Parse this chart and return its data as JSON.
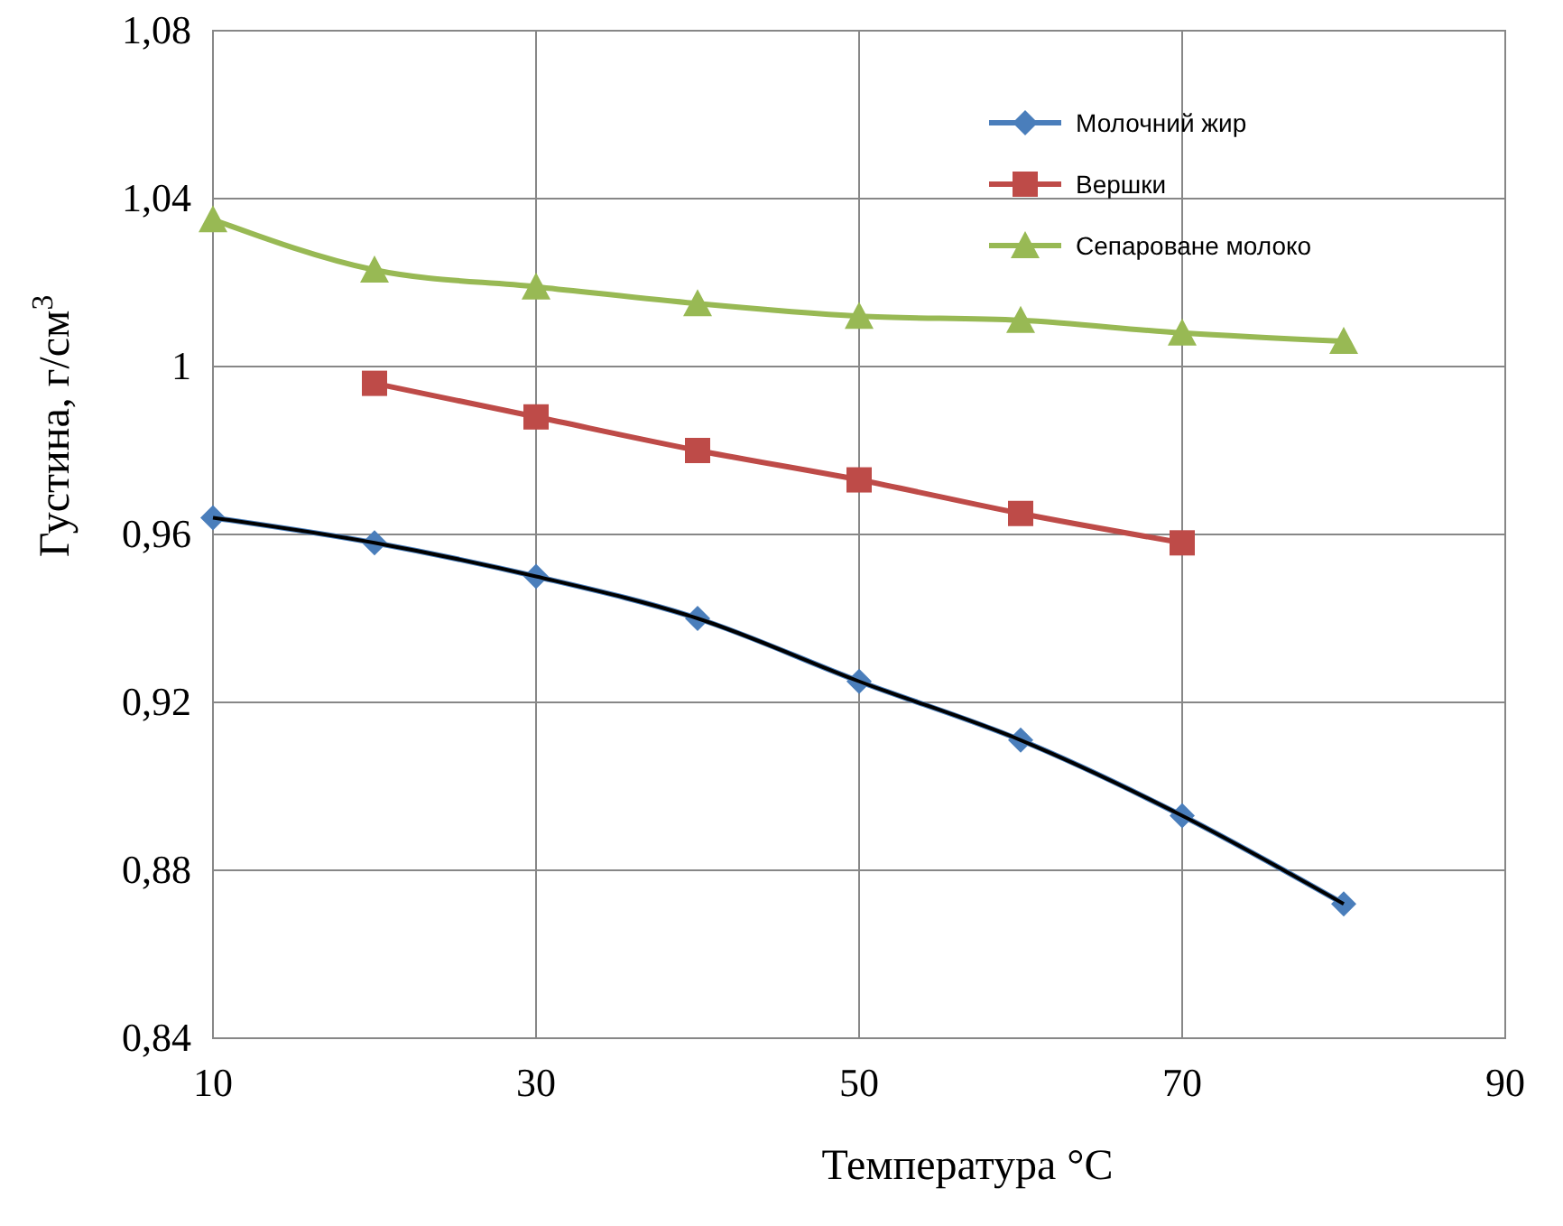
{
  "chart_data": {
    "type": "line",
    "xlabel": "Температура °C",
    "ylabel": "Густина, г/см$^{3}$",
    "x": [
      10,
      20,
      30,
      40,
      50,
      60,
      70,
      80
    ],
    "series": [
      {
        "name": "Молочний жир",
        "color": "#4a7ebb",
        "marker": "diamond",
        "values": [
          0.964,
          0.958,
          0.95,
          0.94,
          0.925,
          0.911,
          0.893,
          0.872
        ]
      },
      {
        "name": "Вершки",
        "color": "#be4b48",
        "marker": "square",
        "values": [
          null,
          0.996,
          0.988,
          0.98,
          0.973,
          0.965,
          0.958,
          null
        ]
      },
      {
        "name": "Сепароване молоко",
        "color": "#98b954",
        "marker": "triangle",
        "values": [
          1.035,
          1.023,
          1.019,
          1.015,
          1.012,
          1.011,
          1.008,
          1.006
        ]
      },
      {
        "type": "line",
        "color": "#000000",
        "marker": "none",
        "x": [
          10,
          20,
          30,
          40,
          50,
          60,
          70,
          80
        ],
        "values": [
          0.964,
          0.958,
          0.95,
          0.94,
          0.925,
          0.911,
          0.893,
          0.872
        ]
      }
    ],
    "xlim": [
      10,
      90
    ],
    "xticks": [
      10,
      30,
      50,
      70,
      90
    ],
    "ylim": [
      0.84,
      1.08
    ],
    "yticks": [
      {
        "value": 0.84,
        "label": "0,84"
      },
      {
        "value": 0.88,
        "label": "0,88"
      },
      {
        "value": 0.92,
        "label": "0,92"
      },
      {
        "value": 0.96,
        "label": "0,96"
      },
      1,
      {
        "value": 1.04,
        "label": "1,04"
      },
      {
        "value": 1.08,
        "label": "1,08"
      }
    ],
    "grid": true,
    "legend": "top right",
    "line_style": "solid"
  }
}
